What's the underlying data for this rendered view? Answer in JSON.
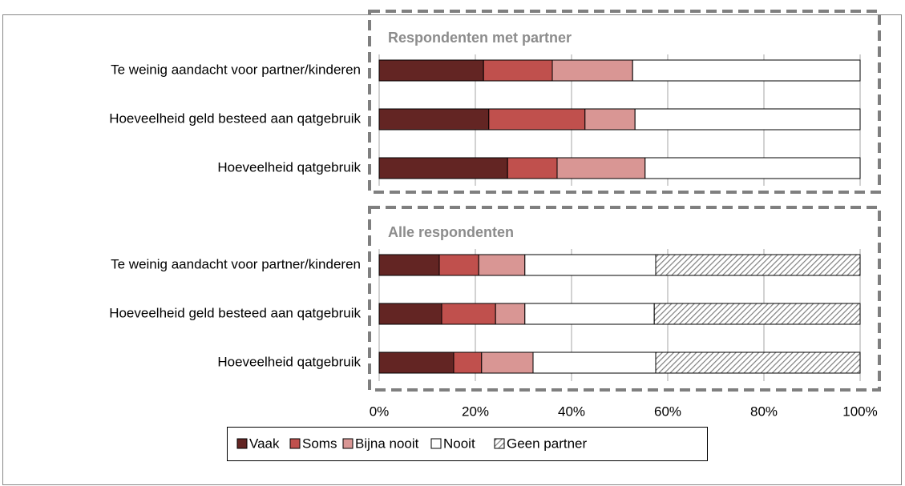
{
  "chart_data": [
    {
      "type": "stacked-bar",
      "title": "Respondenten met partner",
      "categories": [
        "Te weinig aandacht voor partner/kinderen",
        "Hoeveelheid geld besteed aan qatgebruik",
        "Hoeveelheid qatgebruik"
      ],
      "series": [
        {
          "name": "Vaak",
          "color": "#632523",
          "values": [
            21.7,
            22.8,
            26.7
          ]
        },
        {
          "name": "Soms",
          "color": "#c0504d",
          "values": [
            14.3,
            20,
            10.3
          ]
        },
        {
          "name": "Bijna nooit",
          "color": "#d99694",
          "values": [
            16.7,
            10.4,
            18.3
          ]
        },
        {
          "name": "Nooit",
          "color": "#ffffff",
          "values": [
            47.3,
            46.8,
            44.7
          ]
        }
      ]
    },
    {
      "type": "stacked-bar",
      "title": "Alle respondenten",
      "categories": [
        "Te weinig aandacht voor partner/kinderen",
        "Hoeveelheid geld besteed aan qatgebruik",
        "Hoeveelheid qatgebruik"
      ],
      "series": [
        {
          "name": "Vaak",
          "color": "#632523",
          "values": [
            12.5,
            13,
            15.5
          ]
        },
        {
          "name": "Soms",
          "color": "#c0504d",
          "values": [
            8.2,
            11.2,
            5.8
          ]
        },
        {
          "name": "Bijna nooit",
          "color": "#d99694",
          "values": [
            9.6,
            6.1,
            10.7
          ]
        },
        {
          "name": "Nooit",
          "color": "#ffffff",
          "values": [
            27.2,
            26.9,
            25.5
          ]
        },
        {
          "name": "Geen partner",
          "color": "#7f7f7f",
          "hatch": true,
          "values": [
            42.5,
            42.8,
            42.5
          ]
        }
      ],
      "xlim": [
        0,
        100
      ],
      "xticks": [
        {
          "value": 0,
          "label": "0%"
        },
        {
          "value": 20,
          "label": "20%"
        },
        {
          "value": 40,
          "label": "40%"
        },
        {
          "value": 60,
          "label": "60%"
        },
        {
          "value": 80,
          "label": "80%"
        },
        {
          "value": 100,
          "label": "100%"
        }
      ],
      "grid": true
    }
  ]
}
